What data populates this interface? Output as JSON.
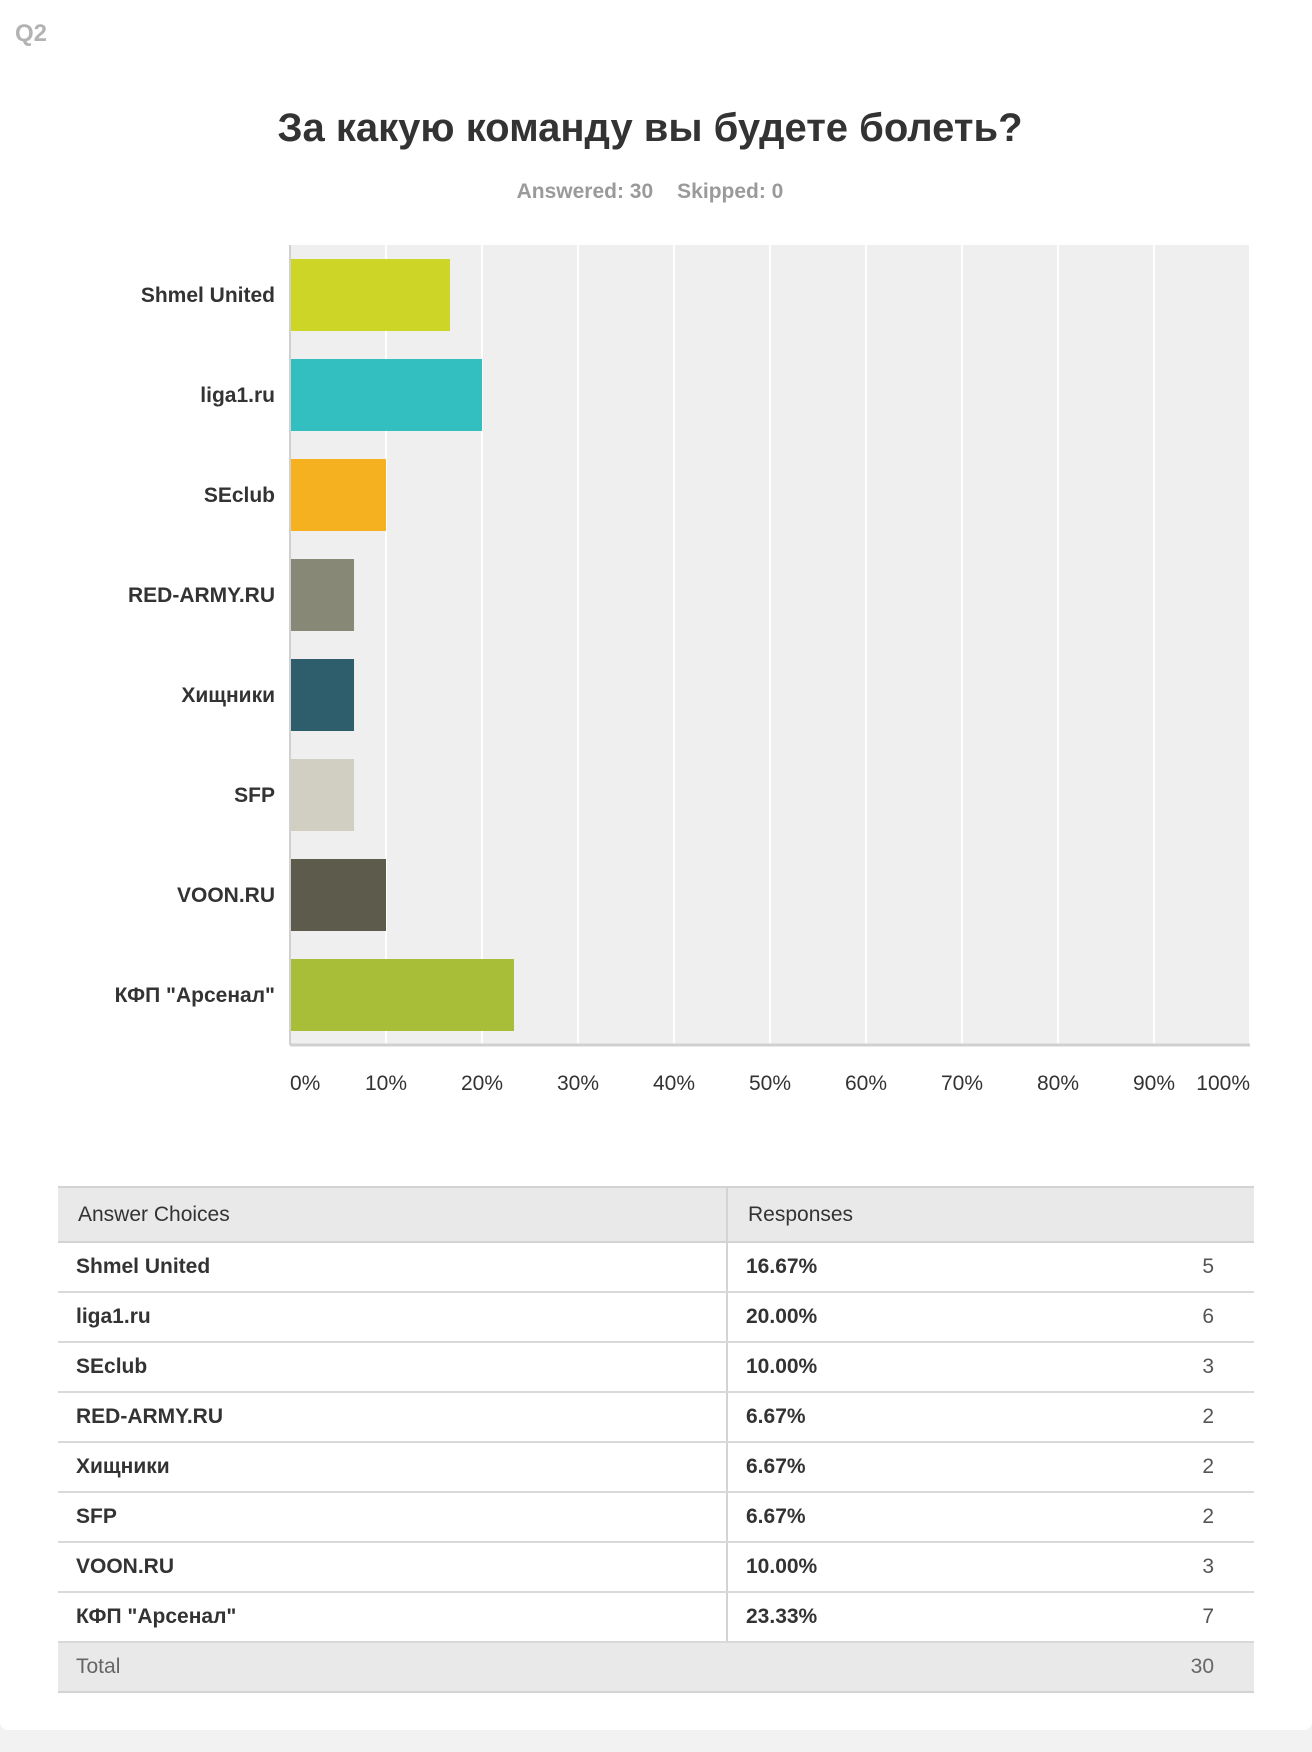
{
  "question": {
    "number": "Q2",
    "title": "За какую команду вы будете болеть?",
    "answered_label": "Answered: 30",
    "skipped_label": "Skipped: 0"
  },
  "chart_data": {
    "type": "bar",
    "orientation": "horizontal",
    "categories": [
      "Shmel United",
      "liga1.ru",
      "SEclub",
      "RED-ARMY.RU",
      "Хищники",
      "SFP",
      "VOON.RU",
      "КФП \"Арсенал\""
    ],
    "values": [
      16.67,
      20.0,
      10.0,
      6.67,
      6.67,
      6.67,
      10.0,
      23.33
    ],
    "colors": [
      "#cdd527",
      "#33bebf",
      "#f5b120",
      "#888876",
      "#2e5e6c",
      "#d0cfc1",
      "#5d5b4b",
      "#a8bd38"
    ],
    "xlim": [
      0,
      100
    ],
    "xticks": [
      "0%",
      "10%",
      "20%",
      "30%",
      "40%",
      "50%",
      "60%",
      "70%",
      "80%",
      "90%",
      "100%"
    ],
    "title": "",
    "xlabel": "",
    "ylabel": "",
    "grid": true,
    "background": "#efefef"
  },
  "table": {
    "headers": {
      "choices": "Answer Choices",
      "responses": "Responses"
    },
    "rows": [
      {
        "choice": "Shmel United",
        "percent": "16.67%",
        "count": "5"
      },
      {
        "choice": "liga1.ru",
        "percent": "20.00%",
        "count": "6"
      },
      {
        "choice": "SEclub",
        "percent": "10.00%",
        "count": "3"
      },
      {
        "choice": "RED-ARMY.RU",
        "percent": "6.67%",
        "count": "2"
      },
      {
        "choice": "Хищники",
        "percent": "6.67%",
        "count": "2"
      },
      {
        "choice": "SFP",
        "percent": "6.67%",
        "count": "2"
      },
      {
        "choice": "VOON.RU",
        "percent": "10.00%",
        "count": "3"
      },
      {
        "choice": "КФП \"Арсенал\"",
        "percent": "23.33%",
        "count": "7"
      }
    ],
    "total_label": "Total",
    "total_value": "30"
  }
}
